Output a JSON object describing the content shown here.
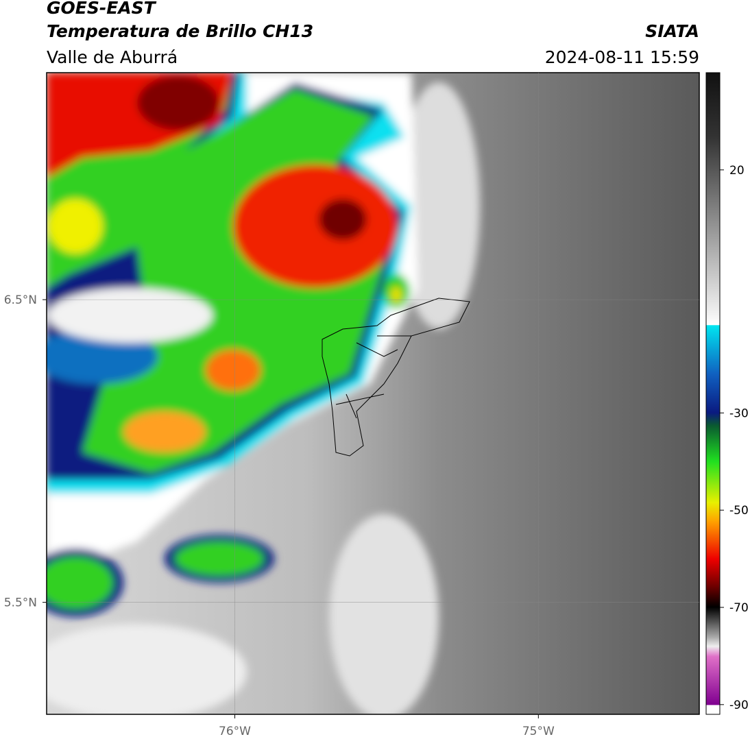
{
  "header": {
    "satellite": "GOES-EAST",
    "product": "Temperatura de Brillo CH13",
    "region": "Valle de Aburrá",
    "agency": "SIATA",
    "datetime": "2024-08-11 15:59"
  },
  "map": {
    "xlim": [
      -76.62,
      -74.47
    ],
    "ylim": [
      5.13,
      7.25
    ],
    "xticks": [
      {
        "value": -76,
        "label": "76°W"
      },
      {
        "value": -75,
        "label": "75°W"
      }
    ],
    "yticks": [
      {
        "value": 6.5,
        "label": "6.5°N"
      },
      {
        "value": 5.5,
        "label": "5.5°N"
      }
    ]
  },
  "colorbar": {
    "lim": [
      -92,
      40
    ],
    "ticks": [
      20,
      -30,
      -50,
      -70,
      -90
    ]
  }
}
